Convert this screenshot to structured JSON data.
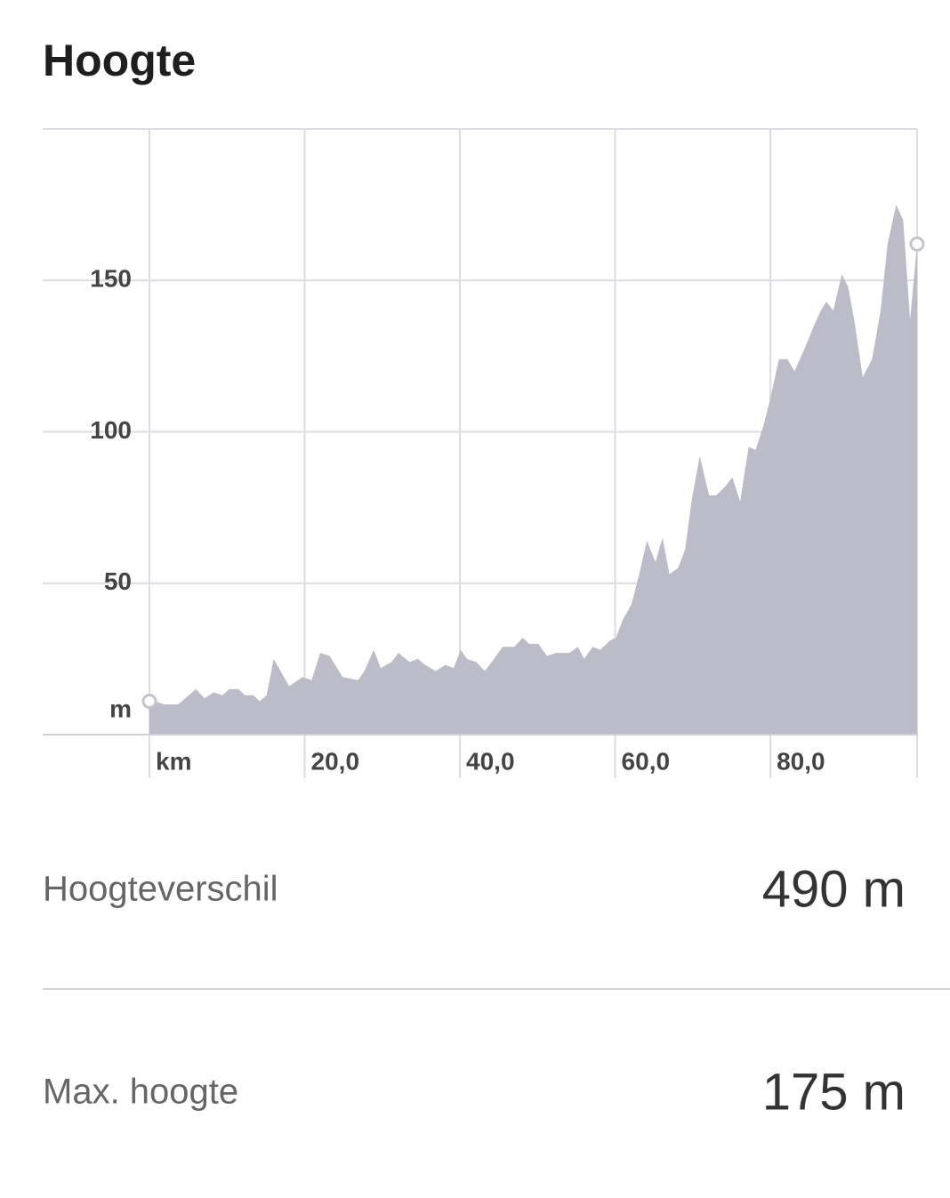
{
  "title": "Hoogte",
  "chart_data": {
    "type": "area",
    "color": "#bcbcc9",
    "grid": true,
    "x_label": "km",
    "y_label": "m",
    "x": [
      0,
      0.8,
      1.9,
      3.7,
      6.0,
      7.1,
      8.3,
      9.4,
      10.3,
      11.5,
      12.3,
      13.4,
      14.2,
      15.1,
      16.0,
      18.0,
      19.7,
      20.9,
      22.0,
      23.2,
      24.9,
      26.9,
      27.7,
      28.9,
      29.8,
      31.2,
      32.1,
      33.5,
      34.6,
      35.5,
      36.9,
      38.1,
      39.2,
      40.1,
      40.9,
      42.1,
      43.2,
      44.4,
      45.5,
      47.0,
      48.1,
      48.9,
      50.1,
      51.2,
      52.4,
      54.1,
      55.2,
      56.0,
      57.1,
      58.1,
      59.3,
      60.1,
      61.0,
      62.1,
      63.0,
      64.1,
      65.2,
      66.1,
      67.0,
      68.1,
      69.0,
      69.9,
      70.9,
      72.1,
      73.0,
      74.2,
      75.1,
      76.1,
      77.2,
      78.1,
      79.1,
      80.0,
      81.1,
      82.2,
      83.1,
      84.5,
      85.6,
      86.5,
      87.2,
      88.1,
      89.2,
      90.0,
      90.8,
      91.9,
      93.1,
      94.2,
      95.1,
      96.2,
      97.1,
      98.0,
      98.9
    ],
    "values": [
      11,
      11,
      10,
      10,
      15,
      12,
      14,
      13,
      15,
      15,
      13,
      13,
      11,
      13,
      25,
      16,
      19,
      18,
      27,
      26,
      19,
      18,
      21,
      28,
      22,
      24,
      27,
      24,
      25,
      23,
      21,
      23,
      22,
      28,
      25,
      24,
      21,
      25,
      29,
      29,
      32,
      30,
      30,
      26,
      27,
      27,
      29,
      25,
      29,
      28,
      31,
      32,
      38,
      43,
      52,
      64,
      57,
      65,
      53,
      55,
      61,
      78,
      92,
      79,
      79,
      82,
      85,
      77,
      95,
      94,
      102,
      111,
      124,
      124,
      120,
      128,
      135,
      140,
      143,
      140,
      152,
      148,
      137,
      118,
      124,
      140,
      162,
      175,
      170,
      137,
      162
    ],
    "xlim": [
      0,
      98.9
    ],
    "xticks": [
      {
        "value": 20,
        "label": "20,0"
      },
      {
        "value": 40,
        "label": "40,0"
      },
      {
        "value": 60,
        "label": "60,0"
      },
      {
        "value": 80,
        "label": "80,0"
      }
    ],
    "ylim": [
      0,
      200
    ],
    "yticks": [
      50,
      100,
      150
    ]
  },
  "stats": [
    {
      "label": "Hoogteverschil",
      "value": "490 m"
    },
    {
      "label": "Max. hoogte",
      "value": "175 m"
    }
  ]
}
